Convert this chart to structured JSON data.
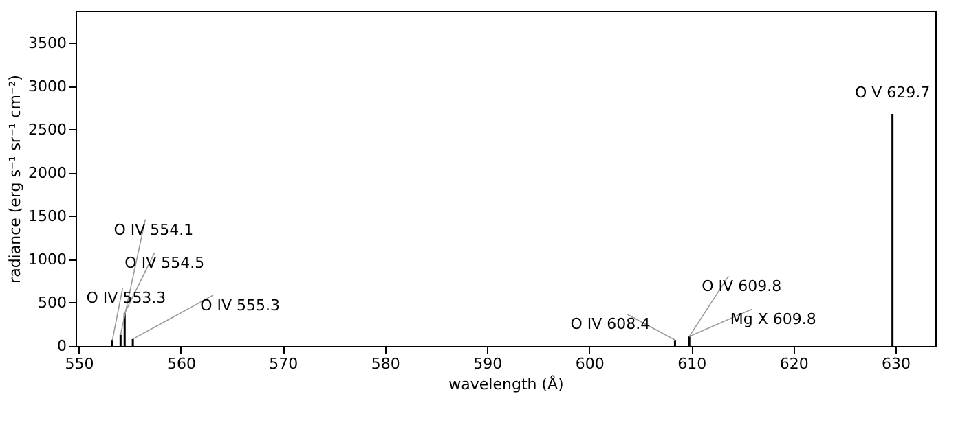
{
  "chart_data": {
    "type": "bar",
    "xlabel": "wavelength (Å)",
    "ylabel": "radiance (erg s⁻¹ sr⁻¹ cm⁻²)",
    "x": [
      553.3,
      554.1,
      554.5,
      555.3,
      608.4,
      609.8,
      629.7
    ],
    "series": [
      {
        "color": "#000000",
        "values": [
          70,
          130,
          380,
          80,
          70,
          110,
          2680
        ]
      }
    ],
    "xlim": [
      549.7,
      633.9
    ],
    "ylim": [
      0,
      3870
    ],
    "xticks": [
      550,
      560,
      570,
      580,
      590,
      600,
      610,
      620,
      630
    ],
    "yticks": [
      0,
      500,
      1000,
      1500,
      2000,
      2500,
      3000,
      3500
    ],
    "grid": false,
    "annotations": [
      {
        "text": "O IV 553.3",
        "x": 553.3,
        "y": 70
      },
      {
        "text": "O IV 554.1",
        "x": 554.1,
        "y": 130
      },
      {
        "text": "O IV 554.5",
        "x": 554.5,
        "y": 380
      },
      {
        "text": "O IV 555.3",
        "x": 555.3,
        "y": 80
      },
      {
        "text": "O IV 608.4",
        "x": 608.4,
        "y": 70
      },
      {
        "text": "O IV 609.8",
        "x": 609.8,
        "y": 110
      },
      {
        "text": "Mg X 609.8",
        "x": 609.8,
        "y": 110
      },
      {
        "text": "O V 629.7",
        "x": 629.7,
        "y": 2680
      }
    ]
  }
}
